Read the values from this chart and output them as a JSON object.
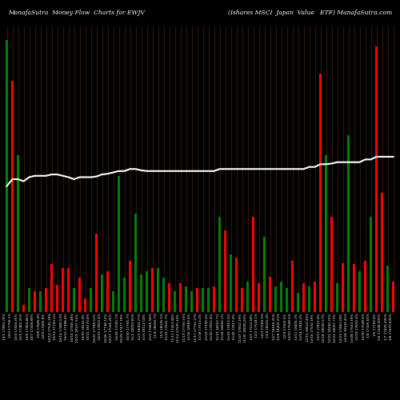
{
  "title_left": "ManafaSutra  Money Flow  Charts for EWJV",
  "title_right": "(Ishares MSCI  Japan  Value   ETF) ManafaSutra.com",
  "background_color": "#000000",
  "bar_colors": [
    "green",
    "red",
    "green",
    "red",
    "green",
    "red",
    "green",
    "red",
    "red",
    "red",
    "red",
    "red",
    "green",
    "red",
    "red",
    "green",
    "red",
    "green",
    "red",
    "green",
    "green",
    "green",
    "red",
    "green",
    "green",
    "green",
    "red",
    "green",
    "green",
    "red",
    "green",
    "red",
    "green",
    "green",
    "red",
    "green",
    "green",
    "red",
    "green",
    "red",
    "green",
    "red",
    "red",
    "green",
    "red",
    "red",
    "green",
    "red",
    "green",
    "green",
    "green",
    "red",
    "green",
    "red",
    "green",
    "red",
    "red",
    "green",
    "red",
    "green",
    "red",
    "green",
    "red",
    "green",
    "red",
    "green",
    "red",
    "red",
    "green",
    "red"
  ],
  "bar_heights": [
    400,
    340,
    230,
    10,
    35,
    30,
    30,
    35,
    70,
    40,
    65,
    65,
    35,
    50,
    20,
    35,
    115,
    55,
    60,
    30,
    200,
    50,
    75,
    145,
    55,
    60,
    65,
    65,
    50,
    42,
    30,
    42,
    38,
    30,
    35,
    35,
    35,
    38,
    140,
    120,
    85,
    80,
    35,
    45,
    140,
    42,
    110,
    52,
    38,
    45,
    35,
    75,
    28,
    42,
    38,
    45,
    350,
    230,
    140,
    42,
    72,
    260,
    70,
    60,
    75,
    140,
    390,
    175,
    68,
    45
  ],
  "line_y_abs": [
    185,
    195,
    195,
    192,
    198,
    200,
    200,
    200,
    202,
    202,
    200,
    198,
    195,
    198,
    198,
    198,
    199,
    202,
    203,
    205,
    207,
    207,
    210,
    210,
    208,
    207,
    207,
    207,
    207,
    207,
    207,
    207,
    207,
    207,
    207,
    207,
    207,
    207,
    210,
    210,
    210,
    210,
    210,
    210,
    210,
    210,
    210,
    210,
    210,
    210,
    210,
    210,
    210,
    210,
    213,
    213,
    217,
    217,
    218,
    220,
    220,
    220,
    220,
    220,
    224,
    224,
    228,
    228,
    228,
    228
  ],
  "x_labels": [
    "10/1 17893.74%",
    "10/2 17790.1%",
    "10/4 17404.25%",
    "10/5 17482.25%",
    "10/6 17404.86%",
    "10/7 17418.89%",
    "10/8 17646.4%",
    "10/9 17685.8%",
    "10/12 17545.18%",
    "10/13 17750.1%",
    "10/14 17489.53%",
    "10/15 17488.4%",
    "10/16 17945.48%",
    "10/19 18157.52%",
    "10/20 18141.4%",
    "10/21 18170.8%",
    "10/22 17768.51%",
    "10/23 17823.4%",
    "10/26 17748.12%",
    "10/27 17505.25%",
    "10/28 17500.7%",
    "10/29 17477.79%",
    "10/30 17705.7%",
    "11/2 18093.83%",
    "11/3 18003.77%",
    "11/4 18112.02%",
    "11/5 17665.58%",
    "11/6 18030.7%",
    "11/9 18016.5%",
    "11/10 17501.7%",
    "11/11 17413.44%",
    "11/12 17505.33%",
    "11/13 17750.15%",
    "11/16 18083.4%",
    "11/17 17752.17%",
    "11/18 17510.1%",
    "11/19 17540.2%",
    "11/20 17815.4%",
    "11/23 18010.7%",
    "11/24 18050.1%",
    "11/25 17813.5%",
    "11/26 17817.4%",
    "11/27 17812.29%",
    "11/30 18005.83%",
    "12/1 17513.44%",
    "12/2 17518.1%",
    "12/3 17180.5%",
    "12/4 18025.4%",
    "12/7 18180.25%",
    "12/8 18202.23%",
    "12/9 17503.5%",
    "12/10 17508.5%",
    "12/11 18405.1%",
    "12/14 17816.2%",
    "12/15 18510.45%",
    "12/16 17502.19%",
    "12/17 17812.4%",
    "12/18 18030.17%",
    "12/21 18200.25%",
    "12/22 18027.71%",
    "12/23 17460.24%",
    "12/24 18143.41%",
    "12/28 17503.19%",
    "12/29 17605.4%",
    "12/30 17508.4%",
    "1/4 17105.65%",
    "1/5 17750.4%",
    "1/6 17448.205%",
    "1/7 17425.205%",
    "1/8 17470.605%"
  ],
  "line_color": "#ffffff",
  "grid_line_color": "#3d1f00",
  "chart_max": 420,
  "bar_width": 0.45
}
